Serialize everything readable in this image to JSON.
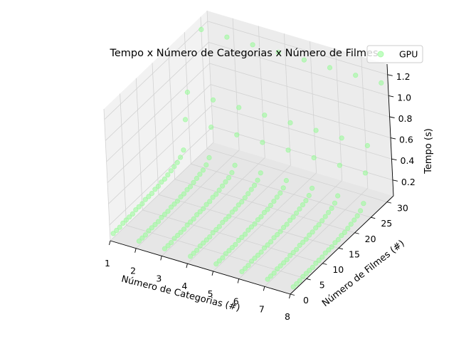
{
  "chart_data": {
    "type": "scatter3d",
    "title": "Tempo x Número de Categorias x Número de Filmes",
    "xlabel": "Número de Categorias (#)",
    "ylabel": "Número de Filmes (#)",
    "zlabel": "Tempo (s)",
    "x_ticks": [
      "1",
      "2",
      "3",
      "4",
      "5",
      "6",
      "7",
      "8"
    ],
    "y_ticks": [
      "0",
      "5",
      "10",
      "15",
      "20",
      "25",
      "30"
    ],
    "z_ticks": [
      "0.2",
      "0.4",
      "0.6",
      "0.8",
      "1.0",
      "1.2"
    ],
    "xlim": [
      1,
      8
    ],
    "ylim": [
      0,
      32
    ],
    "zlim": [
      0.05,
      1.3
    ],
    "grid": true,
    "legend": {
      "position": "top-right",
      "entries": [
        "GPU"
      ]
    },
    "series": [
      {
        "name": "GPU",
        "color": "#98fb98",
        "categories": [
          1,
          2,
          3,
          4,
          5,
          6,
          7,
          8
        ],
        "filmes": [
          1,
          2,
          3,
          4,
          5,
          6,
          7,
          8,
          9,
          10,
          11,
          12,
          13,
          14,
          15,
          16,
          17,
          18,
          19,
          20,
          21,
          22,
          23,
          24,
          25,
          30
        ],
        "tempo_by_filmes": [
          0.09,
          0.09,
          0.09,
          0.1,
          0.1,
          0.1,
          0.1,
          0.11,
          0.11,
          0.11,
          0.12,
          0.12,
          0.12,
          0.13,
          0.13,
          0.14,
          0.14,
          0.15,
          0.16,
          0.17,
          0.18,
          0.2,
          0.24,
          0.5,
          0.73,
          1.18
        ]
      }
    ]
  }
}
